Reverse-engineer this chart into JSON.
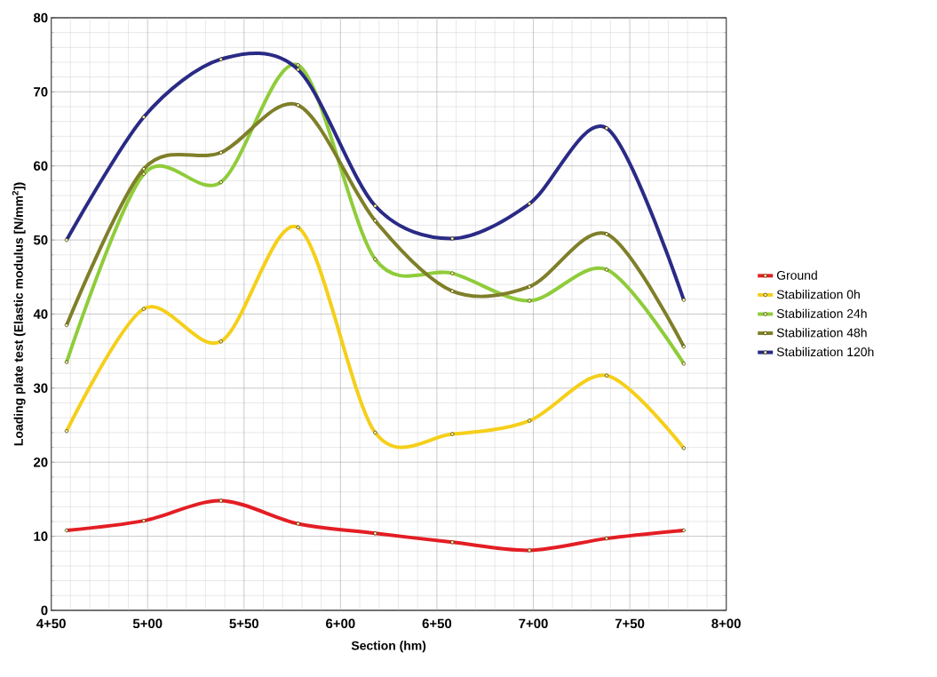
{
  "chart_data": {
    "type": "line",
    "xlabel": "Section (hm)",
    "ylabel": "Loading plate test (Elastic modulus [N/mm$^{2}$])",
    "categories": [
      null,
      null,
      null,
      null,
      null,
      null,
      null,
      null,
      null
    ],
    "series": [
      {
        "name": "Ground",
        "color": "#e31e24",
        "values": [
          10.8,
          12.1,
          14.8,
          11.7,
          10.4,
          9.2,
          8.1,
          9.7,
          10.8
        ]
      },
      {
        "name": "Stabilization 0h",
        "color": "#f5cf1a",
        "values": [
          24.2,
          40.7,
          36.3,
          51.7,
          24.0,
          23.8,
          25.6,
          31.7,
          21.9
        ]
      },
      {
        "name": "Stabilization 24h",
        "color": "#8fcc3a",
        "values": [
          33.5,
          58.9,
          57.8,
          73.6,
          47.4,
          45.5,
          41.8,
          46.0,
          33.3
        ]
      },
      {
        "name": "Stabilization 48h",
        "color": "#7f7f2a",
        "values": [
          38.5,
          59.6,
          61.8,
          68.2,
          52.6,
          43.1,
          43.7,
          50.8,
          35.6
        ]
      },
      {
        "name": "Stabilization 120h",
        "color": "#2a2a86",
        "values": [
          50.0,
          66.6,
          74.4,
          73.0,
          54.6,
          50.2,
          54.9,
          65.1,
          41.9
        ]
      }
    ],
    "annotations": [
      "4+50",
      "5+00",
      "5+50",
      "6+00",
      "6+50",
      "7+00",
      "7+50",
      "8+00"
    ],
    "ylim": [
      0,
      80
    ],
    "yticks": [
      0,
      10,
      20,
      30,
      40,
      50,
      60,
      70,
      80
    ],
    "grid": true,
    "legend": "right",
    "marker": "circle",
    "line_style": "solid"
  }
}
